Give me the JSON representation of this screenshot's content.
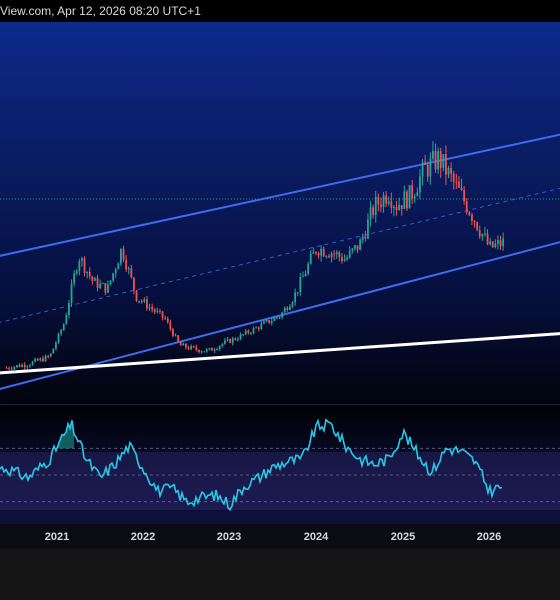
{
  "header": {
    "title": "View.com, Apr 12, 2026 08:20 UTC+1"
  },
  "time_axis": {
    "labels": [
      "2021",
      "2022",
      "2023",
      "2024",
      "2025",
      "2026"
    ]
  },
  "colors": {
    "up_candle": "#26a69a",
    "down_candle": "#ef5350",
    "channel_lines": "#3d6cf0",
    "support_line": "#ffffff",
    "rsi_line": "#28c9e8",
    "rsi_fill": "#1aa69a"
  },
  "chart_data": [
    {
      "type": "candlestick",
      "title": "",
      "x": [
        "2020-06",
        "2020-09",
        "2020-12",
        "2021-02",
        "2021-04",
        "2021-06",
        "2021-08",
        "2021-10",
        "2021-12",
        "2022-02",
        "2022-04",
        "2022-06",
        "2022-08",
        "2022-10",
        "2022-12",
        "2023-02",
        "2023-04",
        "2023-06",
        "2023-08",
        "2023-10",
        "2023-12",
        "2024-01",
        "2024-03",
        "2024-05",
        "2024-07",
        "2024-09",
        "2024-11",
        "2024-12",
        "2025-02",
        "2025-04",
        "2025-06",
        "2025-08",
        "2025-10",
        "2025-11",
        "2026-01",
        "2026-03"
      ],
      "close": [
        0.06,
        0.08,
        0.12,
        0.3,
        0.66,
        0.52,
        0.48,
        0.7,
        0.44,
        0.38,
        0.32,
        0.18,
        0.16,
        0.15,
        0.19,
        0.22,
        0.26,
        0.3,
        0.34,
        0.45,
        0.62,
        0.7,
        0.68,
        0.64,
        0.72,
        0.92,
        1.0,
        0.93,
        0.98,
        1.12,
        1.18,
        1.05,
        0.92,
        0.85,
        0.7,
        0.73
      ],
      "channels": [
        {
          "name": "upper channel",
          "start": [
            "2020-06",
            0.62
          ],
          "end": [
            "2026-08",
            1.33
          ]
        },
        {
          "name": "lower channel",
          "start": [
            "2020-06",
            -0.1
          ],
          "end": [
            "2026-08",
            0.76
          ]
        },
        {
          "name": "support",
          "start": [
            "2020-06",
            0.02
          ],
          "end": [
            "2026-08",
            0.25
          ]
        }
      ]
    },
    {
      "type": "line",
      "title": "",
      "x": [
        "2020-06",
        "2020-09",
        "2020-12",
        "2021-02",
        "2021-03",
        "2021-05",
        "2021-07",
        "2021-09",
        "2021-11",
        "2022-01",
        "2022-03",
        "2022-05",
        "2022-07",
        "2022-09",
        "2022-11",
        "2023-01",
        "2023-03",
        "2023-05",
        "2023-07",
        "2023-09",
        "2023-11",
        "2024-01",
        "2024-03",
        "2024-05",
        "2024-07",
        "2024-09",
        "2024-11",
        "2025-01",
        "2025-03",
        "2025-05",
        "2025-07",
        "2025-09",
        "2025-11",
        "2026-01",
        "2026-03"
      ],
      "values": [
        55,
        48,
        62,
        80,
        88,
        62,
        48,
        58,
        72,
        55,
        38,
        40,
        30,
        33,
        35,
        28,
        42,
        48,
        56,
        60,
        62,
        86,
        88,
        72,
        62,
        58,
        62,
        82,
        66,
        52,
        70,
        68,
        60,
        38,
        42
      ],
      "ylim": [
        20,
        95
      ],
      "levels": [
        70,
        50,
        30
      ]
    }
  ]
}
